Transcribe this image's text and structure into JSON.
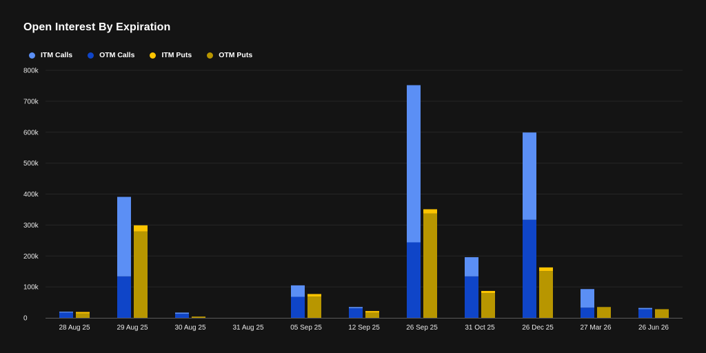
{
  "chart_data": {
    "type": "bar",
    "title": "Open Interest By Expiration",
    "xlabel": "",
    "ylabel": "",
    "ylim": [
      0,
      800000
    ],
    "yticks": [
      0,
      100000,
      200000,
      300000,
      400000,
      500000,
      600000,
      700000,
      800000
    ],
    "ytick_labels": [
      "0",
      "100k",
      "200k",
      "300k",
      "400k",
      "500k",
      "600k",
      "700k",
      "800k"
    ],
    "grid": true,
    "legend_placement": "top-left",
    "categories": [
      "28 Aug 25",
      "29 Aug 25",
      "30 Aug 25",
      "31 Aug 25",
      "05 Sep 25",
      "12 Sep 25",
      "26 Sep 25",
      "31 Oct 25",
      "26 Dec 25",
      "27 Mar 26",
      "26 Jun 26"
    ],
    "stacks": [
      {
        "stack": "calls",
        "series": [
          "OTM Calls",
          "ITM Calls"
        ]
      },
      {
        "stack": "puts",
        "series": [
          "OTM Puts",
          "ITM Puts"
        ]
      }
    ],
    "series": [
      {
        "name": "ITM Calls",
        "color": "#5b8ff5",
        "values": [
          3000,
          257000,
          4000,
          0,
          37000,
          4000,
          508000,
          62000,
          282000,
          60000,
          4000
        ]
      },
      {
        "name": "OTM Calls",
        "color": "#0f45c8",
        "values": [
          17000,
          134000,
          13000,
          0,
          68000,
          31000,
          244000,
          134000,
          317000,
          33000,
          28000
        ]
      },
      {
        "name": "ITM Puts",
        "color": "#fcc400",
        "values": [
          5000,
          20000,
          1000,
          0,
          8000,
          5000,
          14000,
          7000,
          12000,
          0,
          0
        ]
      },
      {
        "name": "OTM Puts",
        "color": "#b89600",
        "values": [
          14000,
          279000,
          3000,
          0,
          69000,
          17000,
          337000,
          80000,
          151000,
          35000,
          28000
        ]
      }
    ]
  }
}
